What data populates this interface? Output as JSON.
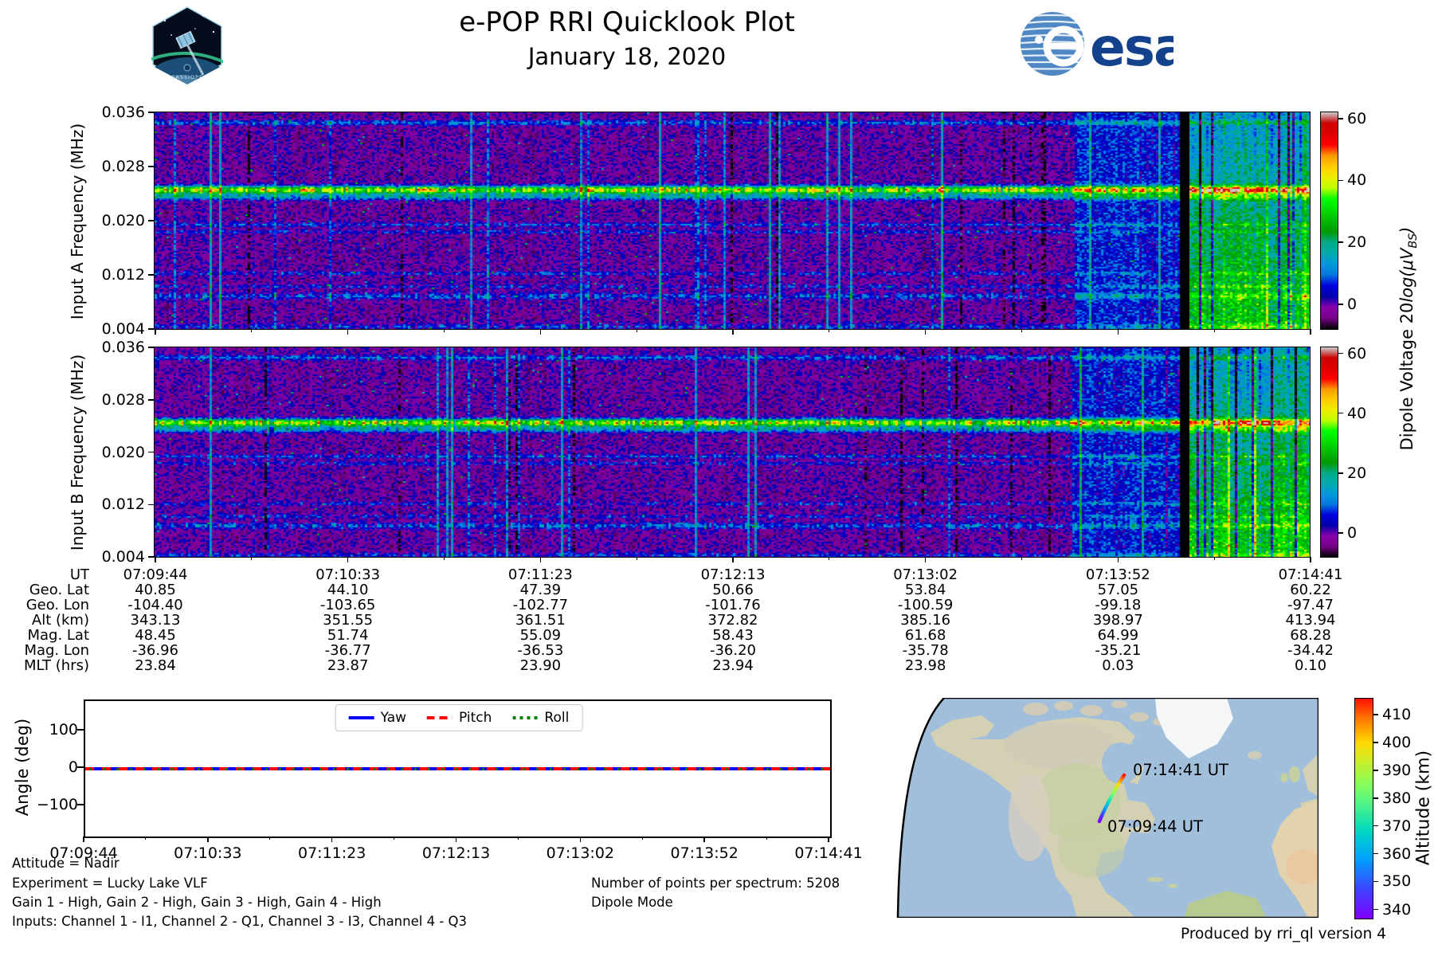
{
  "header": {
    "title": "e-POP RRI Quicklook Plot",
    "subtitle": "January 18, 2020",
    "cassiope_label": "CASSIOPE",
    "esa_label": "esa"
  },
  "colors": {
    "spectral_stops": [
      [
        0,
        "#000000"
      ],
      [
        0.05,
        "#770088"
      ],
      [
        0.1,
        "#8800aa"
      ],
      [
        0.15,
        "#0000aa"
      ],
      [
        0.2,
        "#0000dd"
      ],
      [
        0.25,
        "#0077dd"
      ],
      [
        0.3,
        "#0099dd"
      ],
      [
        0.35,
        "#00aaaa"
      ],
      [
        0.4,
        "#00aa88"
      ],
      [
        0.45,
        "#009900"
      ],
      [
        0.5,
        "#00bb00"
      ],
      [
        0.55,
        "#00dd00"
      ],
      [
        0.6,
        "#00ff00"
      ],
      [
        0.65,
        "#bbff00"
      ],
      [
        0.7,
        "#eeee00"
      ],
      [
        0.75,
        "#ffcc00"
      ],
      [
        0.8,
        "#ff9900"
      ],
      [
        0.85,
        "#ff0000"
      ],
      [
        0.9,
        "#dd0000"
      ],
      [
        0.95,
        "#cc0000"
      ],
      [
        1,
        "#cccccc"
      ]
    ],
    "rainbow_stops": [
      [
        0,
        "#8000ff"
      ],
      [
        0.13,
        "#4040ff"
      ],
      [
        0.27,
        "#00a0ff"
      ],
      [
        0.4,
        "#00d8c0"
      ],
      [
        0.5,
        "#40f090"
      ],
      [
        0.6,
        "#80ff60"
      ],
      [
        0.7,
        "#c0f030"
      ],
      [
        0.8,
        "#ffd800"
      ],
      [
        0.9,
        "#ff8000"
      ],
      [
        1,
        "#ff1000"
      ]
    ],
    "yaw_blue": "#0000ff",
    "pitch_red": "#ff0000",
    "roll_green": "#008000",
    "ocean": "#a1bfdb",
    "land_base": "#d3d0b4",
    "north_gray": "#d0cbb9",
    "plains_green": "#c6cfa2",
    "mountain": "#d8cec0",
    "desert": "#e3d2ae",
    "africa_orange": "#ecc79c",
    "ice": "#f4f6f7",
    "south_america": "#b7ca92",
    "esa_blue": "#14418c",
    "esa_globe": "#4f87c5"
  },
  "spectrograms": [
    {
      "id": "A",
      "ylabel": "Input A Frequency (MHz)",
      "yticks": [
        "0.036",
        "0.028",
        "0.020",
        "0.012",
        "0.004"
      ],
      "cbar_ticks": [
        "60",
        "40",
        "20",
        "0"
      ],
      "seed": 12345
    },
    {
      "id": "B",
      "ylabel": "Input B Frequency (MHz)",
      "yticks": [
        "0.036",
        "0.028",
        "0.020",
        "0.012",
        "0.004"
      ],
      "cbar_ticks": [
        "60",
        "40",
        "20",
        "0"
      ],
      "seed": 67891
    }
  ],
  "cbar_label": {
    "pre": "Dipole Voltage 20",
    "ital": "log(μV",
    "sub": "BS",
    "post": ")"
  },
  "spectro_render": {
    "vmin": -8,
    "vmax": 62,
    "bands": [
      {
        "fy": 0.355,
        "sigma": 0.013,
        "amp": 38,
        "flicker": 0.35
      },
      {
        "fy": 0.387,
        "sigma": 0.01,
        "amp": 15,
        "flicker": 0.4
      },
      {
        "fy": 0.045,
        "sigma": 0.008,
        "amp": 10,
        "flicker": 0.55
      },
      {
        "fy": 0.515,
        "sigma": 0.006,
        "amp": 8,
        "flicker": 0.6
      },
      {
        "fy": 0.548,
        "sigma": 0.006,
        "amp": 6,
        "flicker": 0.65
      },
      {
        "fy": 0.74,
        "sigma": 0.006,
        "amp": 6,
        "flicker": 0.8
      },
      {
        "fy": 0.8,
        "sigma": 0.006,
        "amp": 6,
        "flicker": 0.8
      },
      {
        "fy": 0.845,
        "sigma": 0.01,
        "amp": 9,
        "flicker": 0.7
      },
      {
        "fy": 0.985,
        "sigma": 0.008,
        "amp": 7,
        "flicker": 0.7
      }
    ],
    "zones": {
      "pre": [
        0.793,
        0.886
      ],
      "gap": [
        0.886,
        0.8945
      ],
      "bright": [
        0.8945,
        1.0
      ]
    }
  },
  "table": {
    "rows": [
      {
        "label": "UT",
        "values": [
          "07:09:44",
          "07:10:33",
          "07:11:23",
          "07:12:13",
          "07:13:02",
          "07:13:52",
          "07:14:41"
        ]
      },
      {
        "label": "Geo. Lat",
        "values": [
          "40.85",
          "44.10",
          "47.39",
          "50.66",
          "53.84",
          "57.05",
          "60.22"
        ]
      },
      {
        "label": "Geo. Lon",
        "values": [
          "-104.40",
          "-103.65",
          "-102.77",
          "-101.76",
          "-100.59",
          "-99.18",
          "-97.47"
        ]
      },
      {
        "label": "Alt (km)",
        "values": [
          "343.13",
          "351.55",
          "361.51",
          "372.82",
          "385.16",
          "398.97",
          "413.94"
        ]
      },
      {
        "label": "Mag. Lat",
        "values": [
          "48.45",
          "51.74",
          "55.09",
          "58.43",
          "61.68",
          "64.99",
          "68.28"
        ]
      },
      {
        "label": "Mag. Lon",
        "values": [
          "-36.96",
          "-36.77",
          "-36.53",
          "-36.20",
          "-35.78",
          "-35.21",
          "-34.42"
        ]
      },
      {
        "label": "MLT (hrs)",
        "values": [
          "23.84",
          "23.87",
          "23.90",
          "23.94",
          "23.98",
          "0.03",
          "0.10"
        ]
      }
    ]
  },
  "angle_plot": {
    "ylabel": "Angle (deg)",
    "yticks": [
      "100",
      "0",
      "−100"
    ],
    "xticks": [
      "07:09:44",
      "07:10:33",
      "07:11:23",
      "07:12:13",
      "07:13:02",
      "07:13:52",
      "07:14:41"
    ],
    "legend": [
      {
        "label": "Yaw",
        "style": "solid",
        "color": "#0000ff"
      },
      {
        "label": "Pitch",
        "style": "dashed",
        "color": "#ff0000"
      },
      {
        "label": "Roll",
        "style": "dotted",
        "color": "#008000"
      }
    ]
  },
  "map": {
    "start_label": "07:09:44 UT",
    "end_label": "07:14:41 UT",
    "alt_ticks": [
      "410",
      "400",
      "390",
      "380",
      "370",
      "360",
      "350",
      "340"
    ],
    "alt_label": "Altitude (km)"
  },
  "footer": {
    "line1": "Attitude = Nadir",
    "line2": "Experiment = Lucky Lake VLF",
    "line3": "Gain 1 - High, Gain 2 - High, Gain 3 - High, Gain 4 - High",
    "line4": "Inputs: Channel 1 - I1, Channel 2 - Q1, Channel 3 - I3, Channel 4 - Q3",
    "points": "Number of points per spectrum: 5208",
    "mode": "Dipole Mode",
    "produced": "Produced by rri_ql version 4"
  },
  "chart_data": [
    {
      "type": "heatmap",
      "title": "Input A spectrogram",
      "ylabel": "Input A Frequency (MHz)",
      "y_range_mhz": [
        0.004,
        0.036
      ],
      "x_ticks_ut": [
        "07:09:44",
        "07:10:33",
        "07:11:23",
        "07:12:13",
        "07:13:02",
        "07:13:52",
        "07:14:41"
      ],
      "colorbar_label": "Dipole Voltage 20log(μV_BS)",
      "colorbar_ticks": [
        0,
        20,
        40,
        60
      ],
      "colormap": "nipy_spectral",
      "features": [
        "persistent narrowband emission near 0.0245 MHz",
        "weaker companion line near 0.0235 MHz",
        "intermittent faint lines near 0.0345, 0.0195, 0.0185 and 0.009 MHz",
        "impulsive vertical streaks throughout",
        "broadband enhancement after ~07:13:52 followed by a black data gap then strong green/yellow broadband signal to the end"
      ]
    },
    {
      "type": "heatmap",
      "title": "Input B spectrogram",
      "ylabel": "Input B Frequency (MHz)",
      "y_range_mhz": [
        0.004,
        0.036
      ],
      "x_ticks_ut": [
        "07:09:44",
        "07:10:33",
        "07:11:23",
        "07:12:13",
        "07:13:02",
        "07:13:52",
        "07:14:41"
      ],
      "colorbar_label": "Dipole Voltage 20log(μV_BS)",
      "colorbar_ticks": [
        0,
        20,
        40,
        60
      ],
      "colormap": "nipy_spectral",
      "features": [
        "same structure as Input A"
      ]
    },
    {
      "type": "table",
      "title": "Ephemeris",
      "row_labels": [
        "UT",
        "Geo. Lat",
        "Geo. Lon",
        "Alt (km)",
        "Mag. Lat",
        "Mag. Lon",
        "MLT (hrs)"
      ],
      "columns": [
        [
          "07:09:44",
          "40.85",
          "-104.40",
          "343.13",
          "48.45",
          "-36.96",
          "23.84"
        ],
        [
          "07:10:33",
          "44.10",
          "-103.65",
          "351.55",
          "51.74",
          "-36.77",
          "23.87"
        ],
        [
          "07:11:23",
          "47.39",
          "-102.77",
          "361.51",
          "55.09",
          "-36.53",
          "23.90"
        ],
        [
          "07:12:13",
          "50.66",
          "-101.76",
          "372.82",
          "58.43",
          "-36.20",
          "23.94"
        ],
        [
          "07:13:02",
          "53.84",
          "-100.59",
          "385.16",
          "61.68",
          "-35.78",
          "23.98"
        ],
        [
          "07:13:52",
          "57.05",
          "-99.18",
          "398.97",
          "64.99",
          "-35.21",
          "0.03"
        ],
        [
          "07:14:41",
          "60.22",
          "-97.47",
          "413.94",
          "68.28",
          "-34.42",
          "0.10"
        ]
      ]
    },
    {
      "type": "line",
      "title": "Spacecraft attitude",
      "ylabel": "Angle (deg)",
      "ylim": [
        -180,
        180
      ],
      "yticks": [
        100,
        0,
        -100
      ],
      "x": [
        "07:09:44",
        "07:10:33",
        "07:11:23",
        "07:12:13",
        "07:13:02",
        "07:13:52",
        "07:14:41"
      ],
      "series": [
        {
          "name": "Yaw",
          "values": [
            0,
            0,
            0,
            0,
            0,
            0,
            0
          ]
        },
        {
          "name": "Pitch",
          "values": [
            0,
            0,
            0,
            0,
            0,
            0,
            0
          ]
        },
        {
          "name": "Roll",
          "values": [
            0,
            0,
            0,
            0,
            0,
            0,
            0
          ]
        }
      ],
      "legend_position": "upper center"
    },
    {
      "type": "map_track",
      "title": "Ground track over North America",
      "start": {
        "ut": "07:09:44",
        "lat": 40.85,
        "lon": -104.4,
        "alt_km": 343.13
      },
      "end": {
        "ut": "07:14:41",
        "lat": 60.22,
        "lon": -97.47,
        "alt_km": 413.94
      },
      "colorbar_label": "Altitude (km)",
      "colorbar_ticks": [
        340,
        350,
        360,
        370,
        380,
        390,
        400,
        410
      ],
      "colormap": "rainbow"
    }
  ]
}
